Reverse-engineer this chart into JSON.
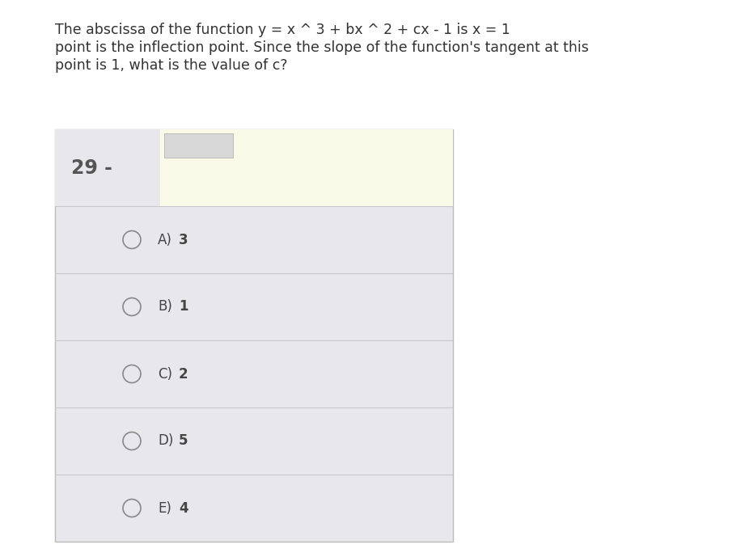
{
  "title_line1": "The abscissa of the function y = x ^ 3 + bx ^ 2 + cx - 1 is x = 1",
  "title_line2": "point is the inflection point. Since the slope of the function's tangent at this",
  "title_line3": "point is 1, what is the value of c?",
  "question_number": "29 -",
  "options": [
    {
      "label": "A)",
      "value": "3"
    },
    {
      "label": "B)",
      "value": "1"
    },
    {
      "label": "C)",
      "value": "2"
    },
    {
      "label": "D)",
      "value": "5"
    },
    {
      "label": "E)",
      "value": "4"
    }
  ],
  "bg_color": "#ffffff",
  "outer_box_color": "#e8e8ec",
  "answer_box_color": "#fafae8",
  "option_separator_color": "#c8c8cc",
  "title_fontsize": 12.5,
  "question_num_fontsize": 17,
  "option_fontsize": 12,
  "title_color": "#333333",
  "option_color": "#444444",
  "circle_color": "#888888"
}
